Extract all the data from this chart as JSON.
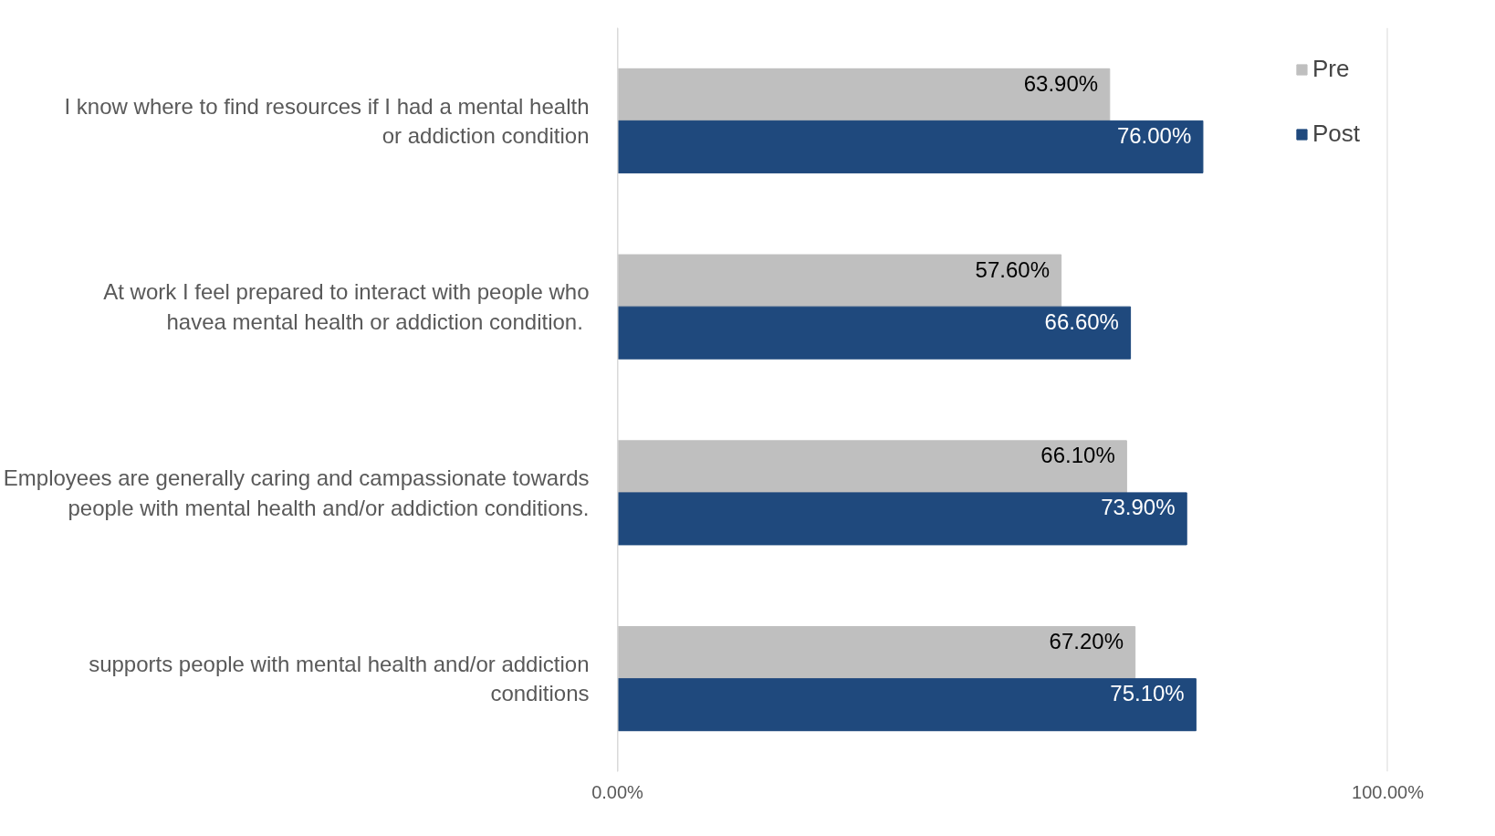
{
  "chart_data": {
    "type": "bar",
    "orientation": "horizontal",
    "categories": [
      "I know where to find resources if I had a mental health or addiction condition",
      "At work I feel prepared to interact with people who havea  mental health or addiction condition.",
      "Employees are generally caring and campassionate towards people with mental health and/or addiction conditions.",
      "supports people with mental health and/or addiction conditions"
    ],
    "series": [
      {
        "name": "Pre",
        "color": "#bfbfbf",
        "values": [
          63.9,
          57.6,
          66.1,
          67.2
        ],
        "value_labels": [
          "63.90%",
          "57.60%",
          "66.10%",
          "67.20%"
        ]
      },
      {
        "name": "Post",
        "color": "#1f497d",
        "values": [
          76.0,
          66.6,
          73.9,
          75.1
        ],
        "value_labels": [
          "76.00%",
          "66.60%",
          "73.90%",
          "75.10%"
        ]
      }
    ],
    "xlim": [
      0,
      100
    ],
    "xticks": [
      {
        "value": 0,
        "label": "0.00%"
      },
      {
        "value": 100,
        "label": "100.00%"
      }
    ],
    "grid": "x",
    "legend": "top right"
  }
}
